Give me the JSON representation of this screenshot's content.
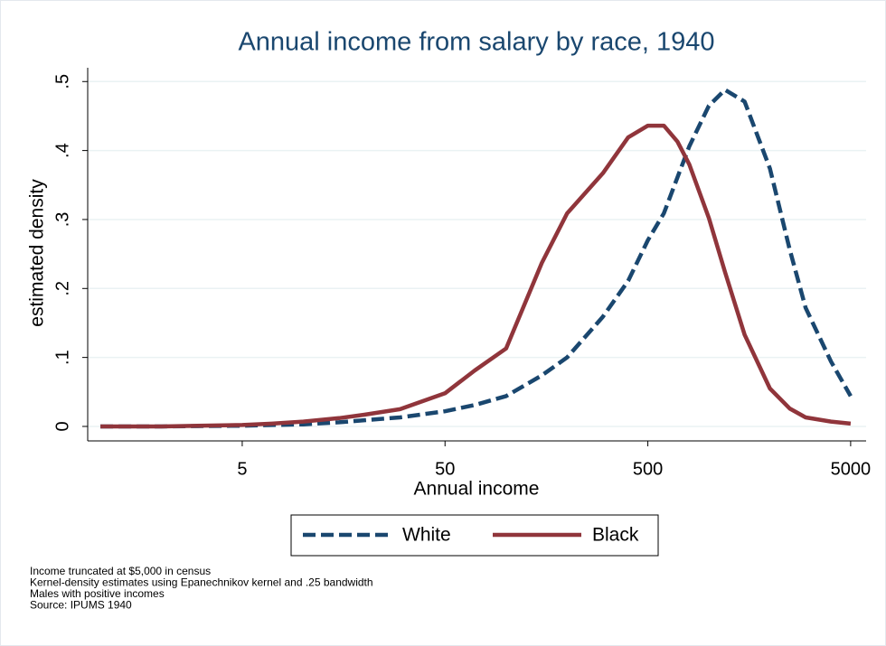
{
  "chart_data": {
    "type": "line",
    "title": "Annual income from salary by race, 1940",
    "x_label": "Annual income",
    "y_label": "estimated density",
    "x": [
      1,
      2,
      3,
      5,
      7,
      10,
      15,
      20,
      30,
      50,
      70,
      100,
      150,
      200,
      300,
      400,
      500,
      600,
      700,
      800,
      1000,
      1200,
      1500,
      2000,
      2500,
      3000,
      4000,
      5000
    ],
    "series": [
      {
        "name": "White",
        "color": "#1a476f",
        "dash": true,
        "values": [
          0,
          0,
          0.0005,
          0.001,
          0.002,
          0.003,
          0.006,
          0.009,
          0.013,
          0.022,
          0.031,
          0.044,
          0.074,
          0.1,
          0.159,
          0.211,
          0.27,
          0.309,
          0.361,
          0.406,
          0.465,
          0.488,
          0.471,
          0.374,
          0.257,
          0.172,
          0.094,
          0.044
        ]
      },
      {
        "name": "Black",
        "color": "#90353b",
        "dash": false,
        "values": [
          0,
          0,
          0.001,
          0.002,
          0.004,
          0.007,
          0.012,
          0.017,
          0.025,
          0.048,
          0.081,
          0.113,
          0.237,
          0.309,
          0.367,
          0.419,
          0.436,
          0.436,
          0.413,
          0.38,
          0.302,
          0.224,
          0.133,
          0.055,
          0.026,
          0.013,
          0.007,
          0.004
        ]
      }
    ],
    "xscale": "log",
    "xlim": [
      0.865,
      5960
    ],
    "xticks": [
      5,
      50,
      500,
      5000
    ],
    "ylim": [
      -0.021,
      0.52
    ],
    "yticks": [
      {
        "value": 0,
        "label": "0"
      },
      {
        "value": 0.1,
        "label": ".1"
      },
      {
        "value": 0.2,
        "label": ".2"
      },
      {
        "value": 0.3,
        "label": ".3"
      },
      {
        "value": 0.4,
        "label": ".4"
      },
      {
        "value": 0.5,
        "label": ".5"
      }
    ],
    "grid": true,
    "legend": "bottom",
    "notes": [
      "Income truncated at $5,000 in census",
      "Kernel-density estimates using Epanechnikov kernel and .25 bandwidth",
      "Males with positive incomes",
      "Source: IPUMS 1940"
    ]
  }
}
